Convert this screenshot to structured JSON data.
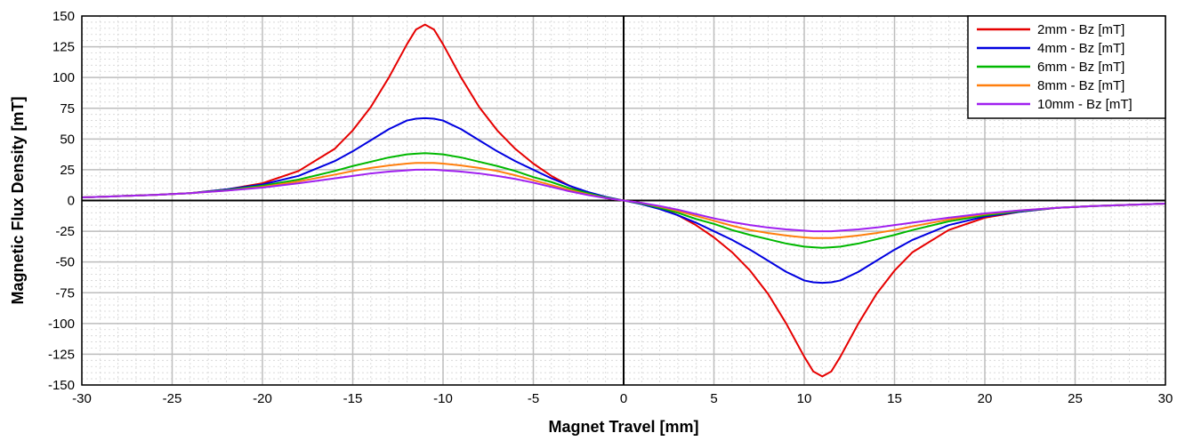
{
  "chart_data": {
    "type": "line",
    "xlabel": "Magnet Travel [mm]",
    "ylabel": "Magnetic Flux Density [mT]",
    "xlim": [
      -30,
      30
    ],
    "ylim": [
      -150,
      150
    ],
    "x_ticks": [
      -30,
      -25,
      -20,
      -15,
      -10,
      -5,
      0,
      5,
      10,
      15,
      20,
      25,
      30
    ],
    "y_ticks": [
      150,
      125,
      100,
      75,
      50,
      25,
      0,
      -25,
      -50,
      -75,
      -100,
      -125,
      -150
    ],
    "grid": true,
    "minor_grid": true,
    "legend_position": "top-right",
    "x": [
      -30,
      -28,
      -26,
      -24,
      -22,
      -20,
      -18,
      -16,
      -15,
      -14,
      -13,
      -12,
      -11.5,
      -11,
      -10.5,
      -10,
      -9,
      -8,
      -7,
      -6,
      -5,
      -4,
      -3,
      -2,
      -1,
      0,
      1,
      2,
      3,
      4,
      5,
      6,
      7,
      8,
      9,
      10,
      10.5,
      11,
      11.5,
      12,
      13,
      14,
      15,
      16,
      18,
      20,
      22,
      24,
      26,
      28,
      30
    ],
    "series": [
      {
        "name": "2mm - Bz [mT]",
        "color": "#e60000",
        "values": [
          2.5,
          3.5,
          4.5,
          6,
          9,
          14,
          24,
          42,
          57,
          76,
          100,
          127,
          139,
          143,
          139,
          127,
          100,
          76,
          57,
          42,
          30,
          20,
          12,
          6,
          2,
          0,
          -2,
          -6,
          -12,
          -20,
          -30,
          -42,
          -57,
          -76,
          -100,
          -127,
          -139,
          -143,
          -139,
          -127,
          -100,
          -76,
          -57,
          -42,
          -24,
          -14,
          -9,
          -6,
          -4.5,
          -3.5,
          -2.5
        ]
      },
      {
        "name": "4mm - Bz [mT]",
        "color": "#0000e0",
        "values": [
          2.5,
          3.5,
          4.5,
          6,
          9,
          13,
          20,
          32,
          40,
          49,
          58,
          65,
          66.5,
          67,
          66.5,
          65,
          58,
          49,
          40,
          32,
          25,
          18,
          12,
          7,
          3,
          0,
          -3,
          -7,
          -12,
          -18,
          -25,
          -32,
          -40,
          -49,
          -58,
          -65,
          -66.5,
          -67,
          -66.5,
          -65,
          -58,
          -49,
          -40,
          -32,
          -20,
          -13,
          -9,
          -6,
          -4.5,
          -3.5,
          -2.5
        ]
      },
      {
        "name": "6mm - Bz [mT]",
        "color": "#00b800",
        "values": [
          2.5,
          3.5,
          4.5,
          6,
          8.5,
          12,
          17,
          24,
          28,
          31.5,
          35,
          37.5,
          38,
          38.5,
          38,
          37.5,
          35,
          31.5,
          28,
          24,
          19,
          15,
          10,
          6,
          2.5,
          0,
          -2.5,
          -6,
          -10,
          -15,
          -19,
          -24,
          -28,
          -31.5,
          -35,
          -37.5,
          -38,
          -38.5,
          -38,
          -37.5,
          -35,
          -31.5,
          -28,
          -24,
          -17,
          -12,
          -8.5,
          -6,
          -4.5,
          -3.5,
          -2.5
        ]
      },
      {
        "name": "8mm - Bz [mT]",
        "color": "#ff7f0e",
        "values": [
          2.5,
          3.5,
          4.5,
          6,
          8,
          11,
          15.5,
          21,
          24,
          26.5,
          28.5,
          30,
          30.5,
          30.5,
          30.5,
          30,
          28.5,
          26.5,
          24,
          20.5,
          16.5,
          12.5,
          8.5,
          5,
          2,
          0,
          -2,
          -5,
          -8.5,
          -12.5,
          -16.5,
          -20.5,
          -24,
          -26.5,
          -28.5,
          -30,
          -30.5,
          -30.5,
          -30.5,
          -30,
          -28.5,
          -26.5,
          -24,
          -21,
          -15.5,
          -11,
          -8,
          -6,
          -4.5,
          -3.5,
          -2.5
        ]
      },
      {
        "name": "10mm - Bz [mT]",
        "color": "#a020f0",
        "values": [
          2.5,
          3.5,
          4.5,
          6,
          8,
          10.5,
          14,
          18,
          20,
          22,
          23.5,
          24.5,
          25,
          25,
          25,
          24.5,
          23.5,
          22,
          20,
          17.5,
          14.5,
          11,
          7.5,
          4.5,
          2,
          0,
          -2,
          -4.5,
          -7.5,
          -11,
          -14.5,
          -17.5,
          -20,
          -22,
          -23.5,
          -24.5,
          -25,
          -25,
          -25,
          -24.5,
          -23.5,
          -22,
          -20,
          -18,
          -14,
          -10.5,
          -8,
          -6,
          -4.5,
          -3.5,
          -2.5
        ]
      }
    ]
  }
}
